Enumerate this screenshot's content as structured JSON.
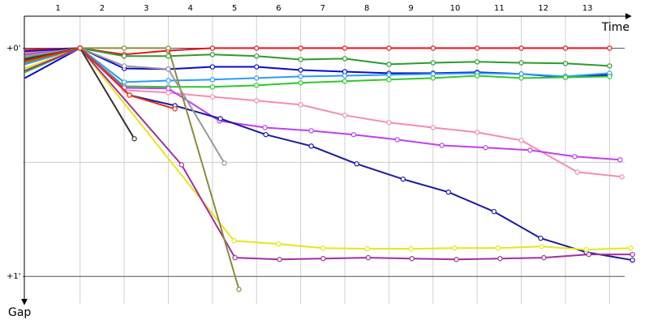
{
  "chart_data": {
    "type": "line",
    "x_label": "Time",
    "y_label": "Gap",
    "categories": [
      "1",
      "2",
      "3",
      "4",
      "5",
      "6",
      "7",
      "8",
      "9",
      "10",
      "11",
      "12",
      "13"
    ],
    "xlim": [
      -0.3,
      13.6
    ],
    "ylim": [
      -0.14,
      1.12
    ],
    "yticks": [
      {
        "value": 0,
        "label": "+0'"
      },
      {
        "value": 1,
        "label": "+1'"
      }
    ],
    "minor_yticks": [
      0.5
    ],
    "grid": true,
    "series": [
      {
        "color": "#e8141a",
        "x": [
          -0.25,
          1,
          2,
          3,
          4,
          5,
          6,
          7,
          8,
          9,
          10,
          11,
          12,
          13
        ],
        "values": [
          0.007,
          0,
          0.028,
          0.011,
          0,
          0,
          0,
          0,
          0,
          0,
          0,
          0,
          0,
          0
        ]
      },
      {
        "color": "#2e9a2e",
        "x": [
          -0.25,
          1,
          2,
          3,
          4,
          5,
          6,
          7,
          8,
          9,
          10,
          11,
          12,
          13
        ],
        "values": [
          0.043,
          0,
          0.035,
          0.035,
          0.028,
          0.035,
          0.05,
          0.046,
          0.071,
          0.064,
          0.06,
          0.064,
          0.067,
          0.078
        ]
      },
      {
        "color": "#0a0ad0",
        "x": [
          -0.25,
          1,
          2,
          3,
          4,
          5,
          6,
          7,
          8,
          9,
          10,
          11,
          12,
          13
        ],
        "values": [
          0.131,
          0,
          0.089,
          0.092,
          0.082,
          0.082,
          0.096,
          0.103,
          0.11,
          0.11,
          0.106,
          0.113,
          0.128,
          0.117
        ]
      },
      {
        "color": "#2a9df4",
        "x": [
          -0.25,
          1,
          2,
          3,
          4,
          5,
          6,
          7,
          8,
          9,
          10,
          11,
          12,
          13
        ],
        "values": [
          0.071,
          0,
          0.149,
          0.142,
          0.138,
          0.131,
          0.124,
          0.121,
          0.117,
          0.113,
          0.11,
          0.113,
          0.124,
          0.11
        ]
      },
      {
        "color": "#2ec82e",
        "x": [
          -0.25,
          1,
          2,
          3,
          4,
          5,
          6,
          7,
          8,
          9,
          10,
          11,
          12,
          13
        ],
        "values": [
          0.106,
          0,
          0.167,
          0.17,
          0.17,
          0.163,
          0.152,
          0.145,
          0.138,
          0.131,
          0.121,
          0.131,
          0.128,
          0.124
        ]
      },
      {
        "color": "#f48cb4",
        "x": [
          -0.25,
          1,
          2,
          3,
          4,
          5,
          6,
          7,
          8,
          9,
          10,
          11,
          12.27,
          13.28
        ],
        "values": [
          0.021,
          0,
          0.184,
          0.195,
          0.213,
          0.23,
          0.248,
          0.294,
          0.326,
          0.348,
          0.369,
          0.404,
          0.543,
          0.564
        ]
      },
      {
        "color": "#c040f0",
        "x": [
          -0.25,
          1,
          2,
          3,
          4.16,
          5.19,
          6.24,
          7.2,
          8.19,
          9.2,
          10.19,
          11.2,
          12.21,
          13.24
        ],
        "values": [
          0.028,
          0,
          0.174,
          0.177,
          0.319,
          0.348,
          0.362,
          0.379,
          0.401,
          0.426,
          0.436,
          0.447,
          0.475,
          0.489
        ]
      },
      {
        "color": "#1a1aa0",
        "x": [
          -0.25,
          1,
          2.12,
          3.15,
          4.18,
          5.21,
          6.24,
          7.27,
          8.32,
          9.35,
          10.38,
          11.44,
          12.47,
          13.52
        ],
        "values": [
          0.014,
          0,
          0.206,
          0.252,
          0.309,
          0.379,
          0.429,
          0.507,
          0.574,
          0.631,
          0.716,
          0.833,
          0.894,
          0.929
        ]
      },
      {
        "color": "#e6e61a",
        "x": [
          -0.25,
          1,
          4.49,
          5.5,
          6.5,
          7.51,
          8.5,
          9.49,
          10.47,
          11.46,
          12.47,
          13.48
        ],
        "values": [
          0.089,
          0,
          0.844,
          0.858,
          0.876,
          0.879,
          0.879,
          0.876,
          0.876,
          0.869,
          0.883,
          0.876
        ]
      },
      {
        "color": "#a030a0",
        "x": [
          -0.25,
          1,
          3.3,
          4.51,
          5.52,
          6.51,
          7.53,
          8.52,
          9.53,
          10.52,
          11.51,
          12.53,
          13.52
        ],
        "values": [
          0.099,
          0,
          0.511,
          0.918,
          0.926,
          0.922,
          0.918,
          0.922,
          0.926,
          0.922,
          0.918,
          0.904,
          0.904
        ]
      },
      {
        "color": "#8c8c3c",
        "x": [
          -0.25,
          1,
          2,
          3,
          4.6
        ],
        "values": [
          0.064,
          0,
          0,
          0,
          1.057
        ]
      },
      {
        "color": "#999999",
        "x": [
          -0.25,
          1,
          2,
          3,
          4.27
        ],
        "values": [
          0.035,
          0,
          0.078,
          0.092,
          0.504
        ]
      },
      {
        "color": "#333333",
        "x": [
          -0.25,
          1,
          2.23
        ],
        "values": [
          0.05,
          0,
          0.397
        ]
      },
      {
        "color": "#e03010",
        "x": [
          -0.25,
          1,
          2.12,
          3.15
        ],
        "values": [
          0.057,
          0,
          0.206,
          0.266
        ]
      }
    ]
  }
}
